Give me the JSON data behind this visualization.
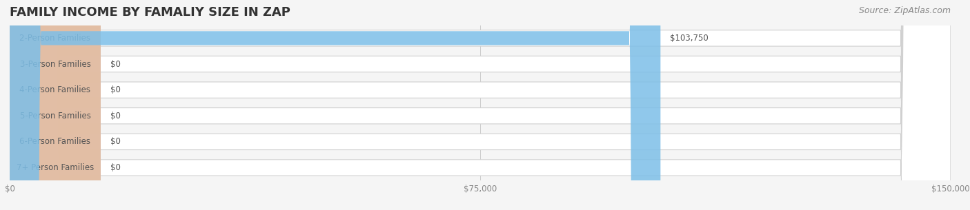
{
  "title": "FAMILY INCOME BY FAMALIY SIZE IN ZAP",
  "source": "Source: ZipAtlas.com",
  "categories": [
    "2-Person Families",
    "3-Person Families",
    "4-Person Families",
    "5-Person Families",
    "6-Person Families",
    "7+ Person Families"
  ],
  "values": [
    103750,
    0,
    0,
    0,
    0,
    0
  ],
  "bar_colors": [
    "#7dbfe8",
    "#c9a8c8",
    "#7ecfc0",
    "#a9a8d8",
    "#f0a0b0",
    "#f5d090"
  ],
  "label_colors": [
    "#7dbfe8",
    "#c9a8c8",
    "#7ecfc0",
    "#a9a8d8",
    "#f0a0b0",
    "#f5d090"
  ],
  "xlim": [
    0,
    150000
  ],
  "xticks": [
    0,
    75000,
    150000
  ],
  "xtick_labels": [
    "$0",
    "$75,000",
    "$150,000"
  ],
  "bar_height": 0.62,
  "background_color": "#f5f5f5",
  "bar_bg_color": "#e8e8e8",
  "title_fontsize": 13,
  "source_fontsize": 9,
  "label_fontsize": 8.5,
  "value_fontsize": 8.5,
  "tick_fontsize": 8.5,
  "fig_width": 14.06,
  "fig_height": 3.05
}
